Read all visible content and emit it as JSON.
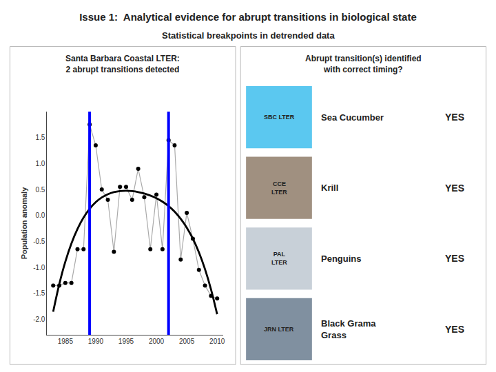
{
  "chart_data": {
    "type": "line",
    "title": "Issue 1:  Analytical evidence for abrupt transitions in biological state",
    "subtitle": "Statistical breakpoints in detrended data",
    "panel_title": "Santa Barbara Coastal LTER:\n2 abrupt transitions detected",
    "ylabel": "Population anomaly",
    "x": [
      1983,
      1984,
      1985,
      1986,
      1987,
      1988,
      1989,
      1990,
      1991,
      1992,
      1993,
      1994,
      1995,
      1996,
      1997,
      1998,
      1999,
      2000,
      2001,
      2002,
      2003,
      2004,
      2005,
      2006,
      2007,
      2008,
      2009,
      2010
    ],
    "series": [
      {
        "color": "black",
        "marker": "circle",
        "line_style": "solid",
        "values": [
          -1.35,
          -1.35,
          -1.3,
          -1.3,
          -0.65,
          -0.65,
          1.75,
          1.35,
          0.5,
          0.3,
          -0.7,
          0.55,
          0.55,
          0.3,
          0.9,
          0.35,
          -0.65,
          0.4,
          -0.65,
          1.45,
          1.35,
          -0.85,
          0.05,
          -0.45,
          -1.05,
          -1.35,
          -1.55,
          -1.6
        ]
      },
      {
        "color": "black",
        "line_style": "solid",
        "values": [
          -1.854913,
          -1.326313,
          -0.892578,
          -0.541258,
          -0.260898,
          -0.041033,
          0.127804,
          0.254089,
          0.345304,
          0.407937,
          0.447482,
          0.468439,
          0.474315,
          0.467626,
          0.449886,
          0.421625,
          0.382375,
          0.330672,
          0.264063,
          0.179098,
          0.071335,
          -0.064662,
          -0.235323,
          -0.448072,
          -0.711326,
          -1.034496,
          -1.427987,
          -1.903197
        ]
      }
    ],
    "breakpoints": {
      "values": [
        1989,
        2002
      ],
      "color": "blue"
    },
    "xlim": [
      1982,
      2011
    ],
    "ylim": [
      -2.3,
      2.0
    ],
    "xticks": [
      1985,
      1990,
      1995,
      2000,
      2005,
      2010
    ],
    "yticks": [
      {
        "value": -2.0,
        "label": "-2.0"
      },
      -1.5,
      {
        "value": -1.0,
        "label": "-1.0"
      },
      -0.5,
      {
        "value": 0.0,
        "label": "0.0"
      },
      0.5,
      {
        "value": 1.0,
        "label": "1.0"
      },
      1.5
    ],
    "grid": false,
    "panel": {
      "title": "Abrupt transition(s) identified\nwith correct timing?",
      "rows": [
        {
          "label": "Sea Cucumber",
          "answer": "YES",
          "logo": "SBC LTER",
          "logo_color": "#5bc8f0"
        },
        {
          "label": "Krill",
          "answer": "YES",
          "logo": "CCE\nLTER",
          "logo_color": "#a09080"
        },
        {
          "label": "Penguins",
          "answer": "YES",
          "logo": "PAL\nLTER",
          "logo_color": "#c8d0d8"
        },
        {
          "label": "Black Grama\nGrass",
          "answer": "YES",
          "logo": "JRN LTER",
          "logo_color": "#8090a0"
        }
      ]
    }
  }
}
